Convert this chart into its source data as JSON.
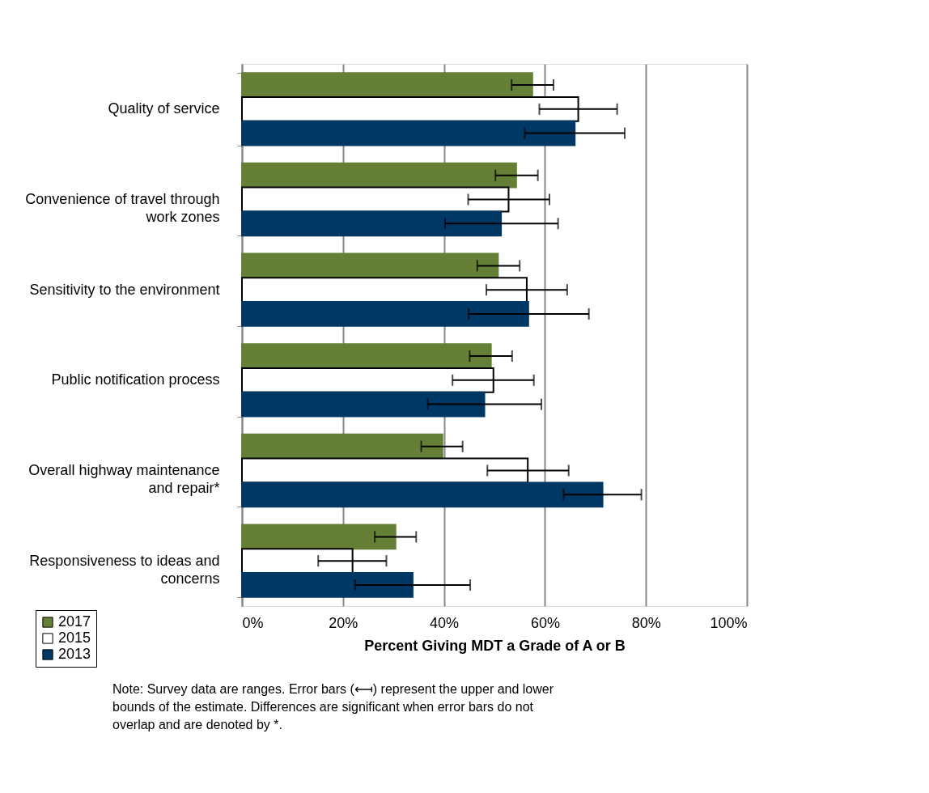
{
  "chart_data": {
    "type": "bar",
    "orientation": "horizontal",
    "xlabel": "Percent Giving MDT a Grade of A or B",
    "categories": [
      "Quality of service",
      "Convenience of travel through work zones",
      "Sensitivity to the environment",
      "Public notification process",
      "Overall highway maintenance and repair*",
      "Responsiveness to ideas and concerns"
    ],
    "series": [
      {
        "name": "2017",
        "color": "#648036",
        "values": [
          57.5,
          54.3,
          50.7,
          49.3,
          39.7,
          30.4
        ],
        "errors": [
          [
            53.4,
            61.7
          ],
          [
            50.2,
            58.6
          ],
          [
            46.6,
            55.0
          ],
          [
            45.1,
            53.5
          ],
          [
            35.5,
            43.7
          ],
          [
            26.3,
            34.5
          ]
        ]
      },
      {
        "name": "2015",
        "color": "#ffffff",
        "values": [
          66.6,
          52.8,
          56.4,
          49.8,
          56.6,
          21.9
        ],
        "errors": [
          [
            58.9,
            74.3
          ],
          [
            44.8,
            60.9
          ],
          [
            48.4,
            64.4
          ],
          [
            41.7,
            57.8
          ],
          [
            48.6,
            64.7
          ],
          [
            15.1,
            28.6
          ]
        ]
      },
      {
        "name": "2013",
        "color": "#003865",
        "values": [
          65.9,
          51.3,
          56.7,
          48.0,
          71.4,
          33.8
        ],
        "errors": [
          [
            56.0,
            75.8
          ],
          [
            40.2,
            62.6
          ],
          [
            44.9,
            68.7
          ],
          [
            36.8,
            59.3
          ],
          [
            63.7,
            79.1
          ],
          [
            22.4,
            45.2
          ]
        ]
      }
    ],
    "xlim": [
      0,
      100
    ],
    "xticks": [
      {
        "value": 0,
        "label": "0%"
      },
      {
        "value": 20,
        "label": "20%"
      },
      {
        "value": 40,
        "label": "40%"
      },
      {
        "value": 60,
        "label": "60%"
      },
      {
        "value": 80,
        "label": "80%"
      },
      {
        "value": 100,
        "label": "100%"
      }
    ],
    "grid": "x",
    "legend": "bottom left",
    "annotations": [
      "Note: Survey data are ranges. Error bars (⟻) represent the upper and lower bounds of the estimate. Differences are significant when error bars do not overlap and are denoted by *."
    ]
  }
}
